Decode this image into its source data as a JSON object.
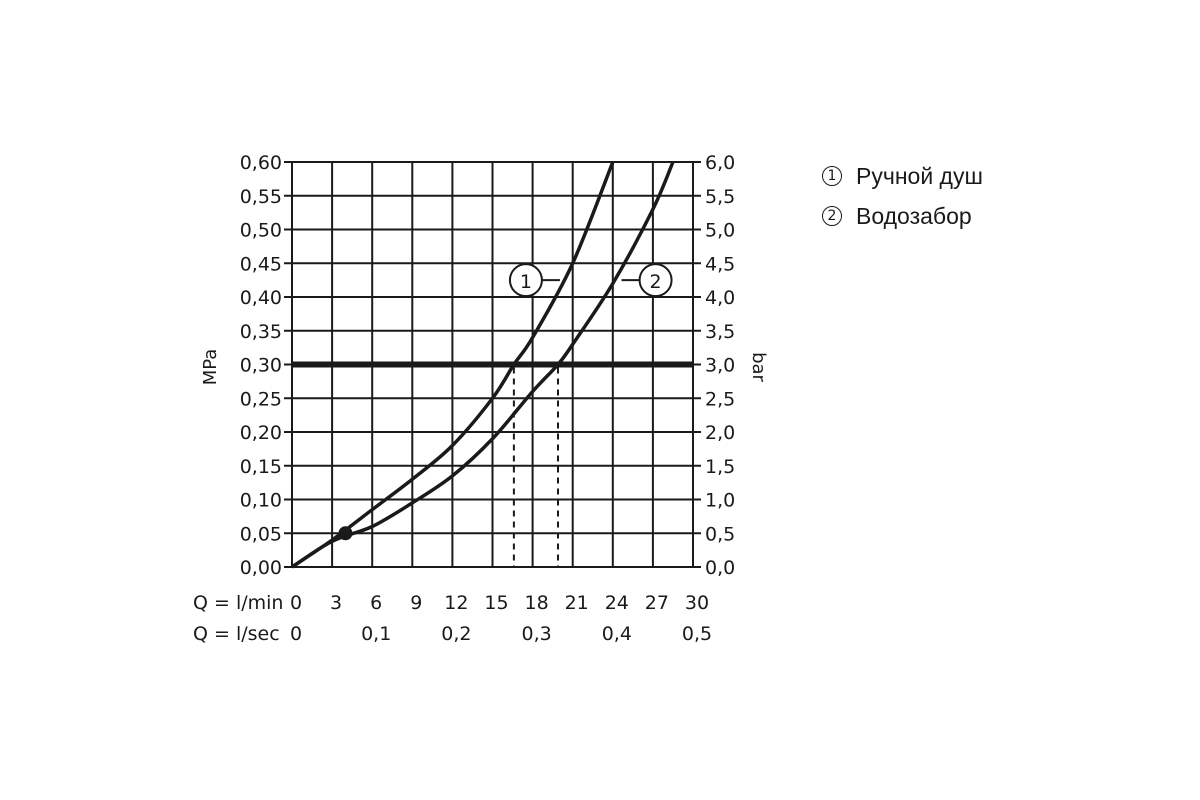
{
  "chart_data": {
    "type": "line",
    "ylabel_left": "MPa",
    "ylabel_right": "bar",
    "x_label_min": "Q = l/min",
    "x_label_sec": "Q = l/sec",
    "xlim": [
      0,
      30
    ],
    "ylim": [
      0,
      0.6
    ],
    "x_ticks_min": [
      "0",
      "3",
      "6",
      "9",
      "12",
      "15",
      "18",
      "21",
      "24",
      "27",
      "30"
    ],
    "x_ticks_sec": [
      {
        "label": "0",
        "value": 0
      },
      {
        "label": "0,1",
        "value": 6
      },
      {
        "label": "0,2",
        "value": 12
      },
      {
        "label": "0,3",
        "value": 18
      },
      {
        "label": "0,4",
        "value": 24
      },
      {
        "label": "0,5",
        "value": 30
      }
    ],
    "y_ticks_left": [
      "0,00",
      "0,05",
      "0,10",
      "0,15",
      "0,20",
      "0,25",
      "0,30",
      "0,35",
      "0,40",
      "0,45",
      "0,50",
      "0,55",
      "0,60"
    ],
    "y_ticks_right": [
      "0,0",
      "0,5",
      "1,0",
      "1,5",
      "2,0",
      "2,5",
      "3,0",
      "3,5",
      "4,0",
      "4,5",
      "5,0",
      "5,5",
      "6,0"
    ],
    "grid": true,
    "reference_pressure": 0.3,
    "series": [
      {
        "name": "1",
        "x": [
          0,
          3,
          6,
          9,
          12,
          15,
          16.6,
          18,
          21,
          24
        ],
        "y": [
          0,
          0.04,
          0.085,
          0.13,
          0.18,
          0.25,
          0.3,
          0.34,
          0.45,
          0.6
        ],
        "marker_x": 17.5,
        "marker_y": 0.425,
        "drop_x": 16.6
      },
      {
        "name": "2",
        "x": [
          0,
          3,
          6,
          9,
          12,
          15,
          18,
          19.9,
          21,
          24,
          27,
          28.5
        ],
        "y": [
          0,
          0.038,
          0.06,
          0.095,
          0.135,
          0.19,
          0.26,
          0.3,
          0.33,
          0.42,
          0.53,
          0.6
        ],
        "marker_x": 27.2,
        "marker_y": 0.425,
        "drop_x": 19.9
      }
    ],
    "point": {
      "x": 4,
      "y": 0.05
    }
  },
  "legend": [
    {
      "num": "1",
      "label": "Ручной душ"
    },
    {
      "num": "2",
      "label": "Водозабор"
    }
  ]
}
